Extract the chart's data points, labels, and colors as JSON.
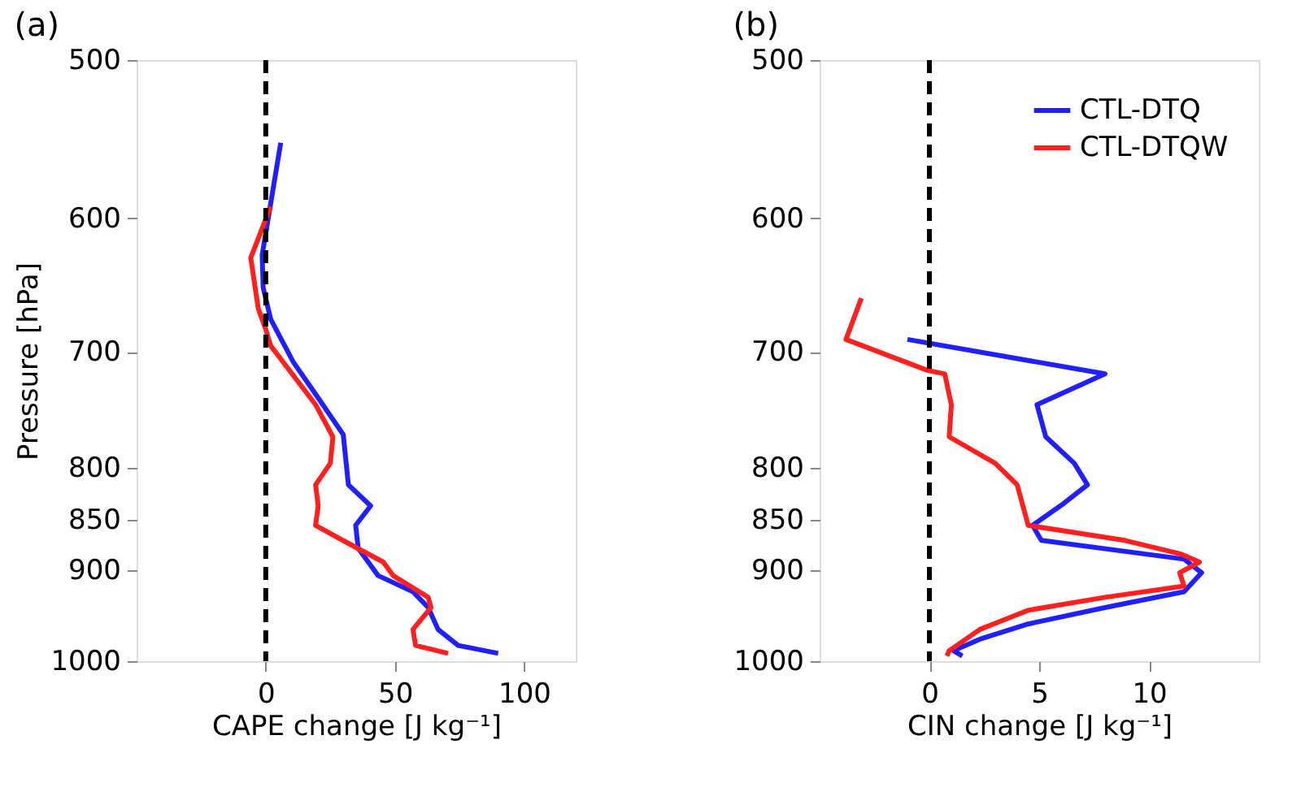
{
  "chart_data": [
    {
      "type": "line",
      "title": "(a)",
      "orientation": "horizontal",
      "xlabel": "CAPE change [J kg⁻¹]",
      "ylabel": "Pressure [hPa]",
      "log": "y",
      "xlim": [
        -50,
        120
      ],
      "xticks": [
        0,
        50,
        100
      ],
      "ylim": [
        1000,
        500
      ],
      "yticks": [
        500,
        600,
        700,
        800,
        850,
        900,
        1000
      ],
      "grid": false,
      "legend": false,
      "line_style": "solid",
      "marker": "none",
      "ref_lines": [
        {
          "axis": "x",
          "value": 0,
          "color": "#000000",
          "line_style": "dashed"
        }
      ],
      "series": [
        {
          "color": "#1f1fff",
          "x": [
            550,
            590,
            626,
            650,
            674,
            708,
            735,
            770,
            816,
            836,
            855,
            878,
            906,
            923,
            940,
            964,
            982,
            991
          ],
          "values": [
            5.8,
            1.9,
            -1.4,
            -1,
            1.9,
            10.6,
            19.3,
            30,
            32,
            40.6,
            34.8,
            35.8,
            43.5,
            57,
            62.9,
            66.7,
            74.5,
            90
          ]
        },
        {
          "color": "#ff1f1f",
          "x": [
            592,
            628,
            666,
            682,
            695,
            744,
            772,
            796,
            816,
            836,
            855,
            873,
            892,
            906,
            929,
            940,
            964,
            982,
            991
          ],
          "values": [
            1.9,
            -5.8,
            -2.9,
            0,
            1.9,
            19.3,
            26,
            25,
            19.3,
            20.3,
            19.3,
            32,
            45.5,
            49.3,
            62.9,
            64,
            57,
            58,
            70.6
          ]
        }
      ]
    },
    {
      "type": "line",
      "title": "(b)",
      "orientation": "horizontal",
      "xlabel": "CIN change [J kg⁻¹]",
      "log": "y",
      "xlim": [
        -5,
        15
      ],
      "xticks": [
        0,
        5,
        10
      ],
      "ylim": [
        1000,
        500
      ],
      "yticks": [
        500,
        600,
        700,
        800,
        850,
        900,
        1000
      ],
      "grid": false,
      "legend": "top right",
      "line_style": "solid",
      "marker": "none",
      "ref_lines": [
        {
          "axis": "x",
          "value": 0,
          "color": "#000000",
          "line_style": "dashed"
        }
      ],
      "series": [
        {
          "name": "CTL-DTQ",
          "color": "#1f1fff",
          "x": [
            690,
            718,
            744,
            772,
            796,
            816,
            834,
            855,
            870,
            889,
            903,
            923,
            940,
            958,
            975,
            988,
            994
          ],
          "values": [
            -1.0,
            8.0,
            4.9,
            5.3,
            6.6,
            7.2,
            6.1,
            4.7,
            5.1,
            11.6,
            12.4,
            11.6,
            8.0,
            4.5,
            2.3,
            1.1,
            1.5
          ]
        },
        {
          "name": "CTL-DTQW",
          "color": "#ff1f1f",
          "x": [
            658,
            690,
            715,
            718,
            744,
            772,
            796,
            816,
            855,
            870,
            884,
            892,
            903,
            917,
            929,
            943,
            964,
            988,
            994
          ],
          "values": [
            -3.1,
            -3.8,
            -0.1,
            0.7,
            1.0,
            0.9,
            3.0,
            4.0,
            4.5,
            8.9,
            11.5,
            12.3,
            11.4,
            11.6,
            8.0,
            4.5,
            2.3,
            0.9,
            0.8
          ]
        }
      ]
    }
  ]
}
